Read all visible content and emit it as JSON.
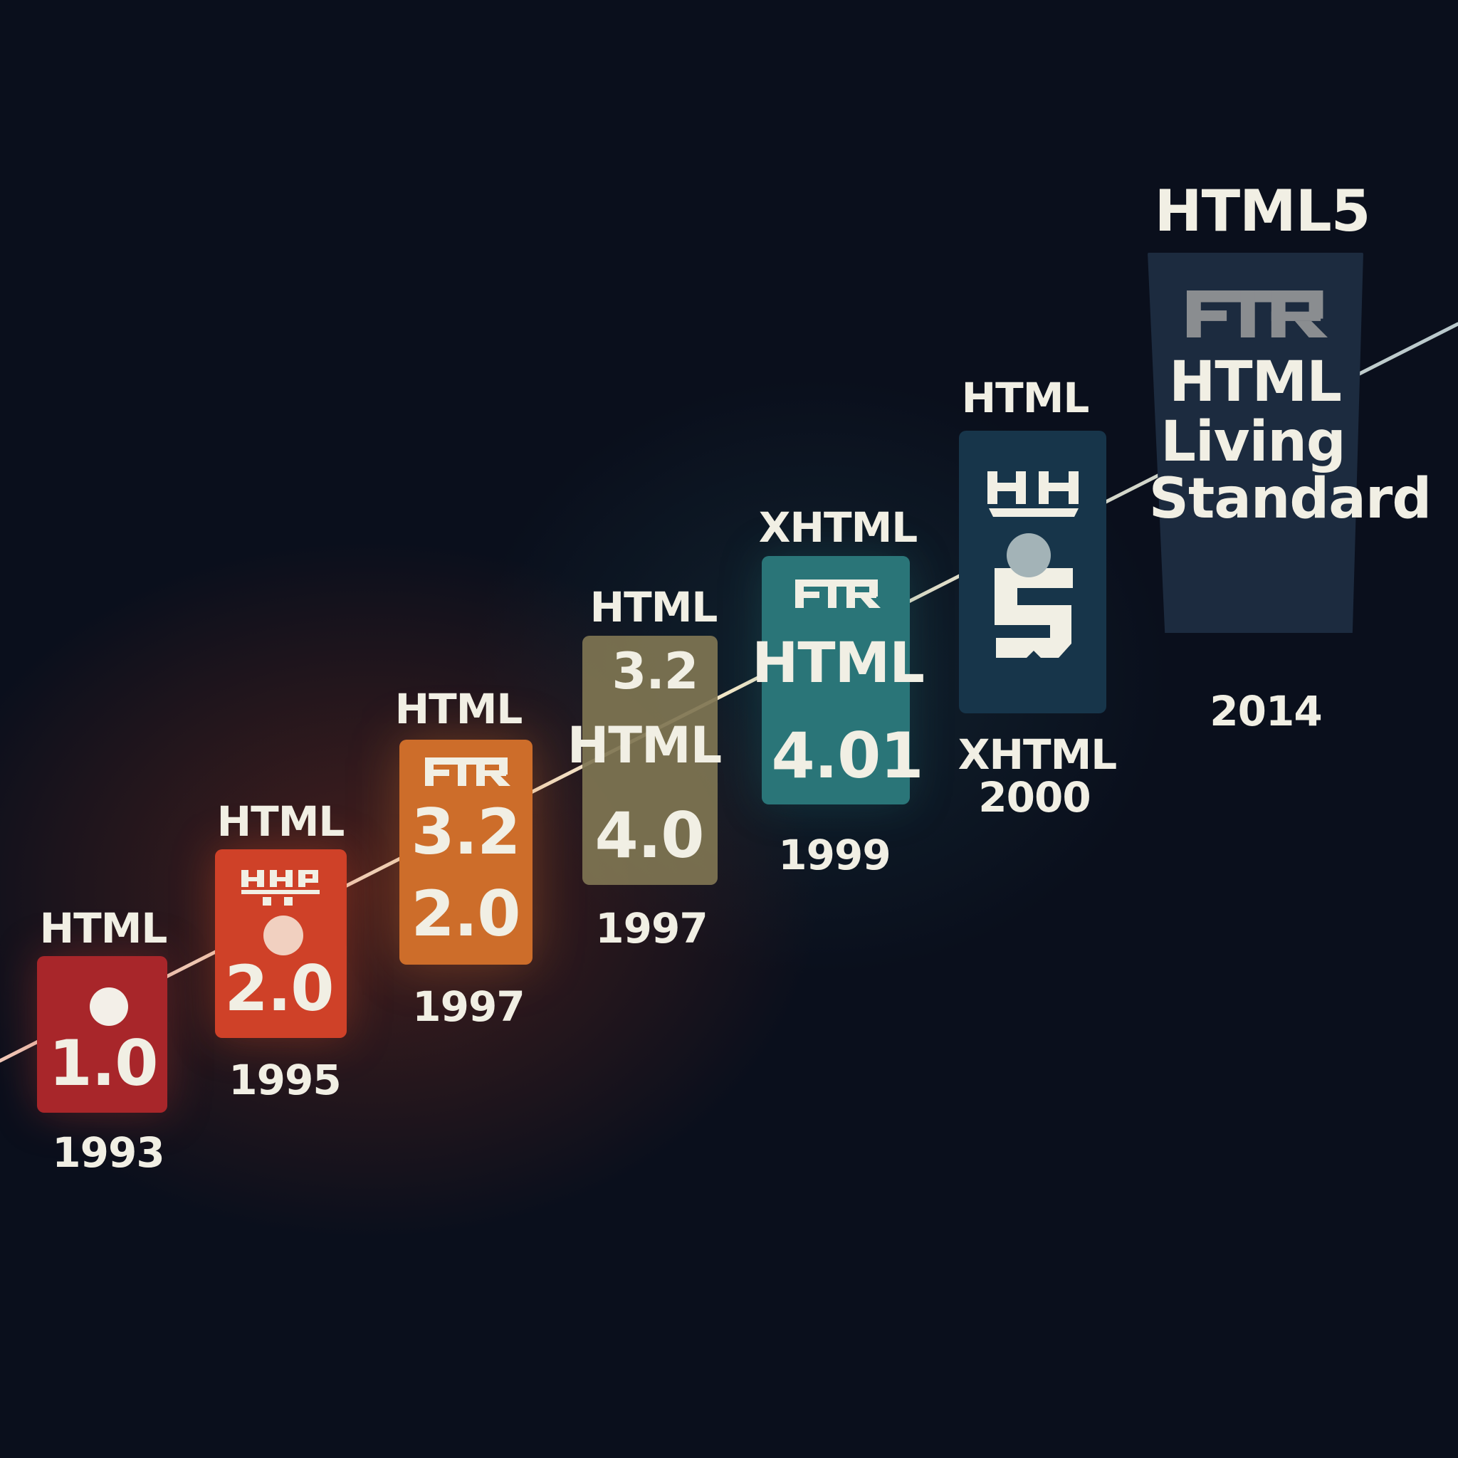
{
  "milestones": [
    {
      "label": "HTML",
      "version": "1.0",
      "year": "1993",
      "color": "#a8262a"
    },
    {
      "label": "HTML",
      "version": "2.0",
      "year": "1995",
      "color": "#cf4128"
    },
    {
      "label": "HTML",
      "version_lines": [
        "3.2",
        "2.0"
      ],
      "year": "1997",
      "color": "#cd6d2a"
    },
    {
      "label": "HTML",
      "version_lines": [
        "3.2",
        "HTML",
        "4.0"
      ],
      "year": "1997",
      "color": "#7f7552"
    },
    {
      "label": "XHTML",
      "version_lines": [
        "HTML",
        "4.01"
      ],
      "year": "1999",
      "color": "#2a7578"
    },
    {
      "label": "HTML",
      "version": "5",
      "year_lines": [
        "XHTML",
        "2000"
      ],
      "color": "#17354a"
    },
    {
      "label": "HTML5",
      "version_lines": [
        "HTML",
        "Living",
        "Standard"
      ],
      "year": "2014",
      "color": "#1c2b3f"
    }
  ],
  "colors": {
    "background": "#0a0f1c",
    "text": "#f1efe4",
    "line": "#e8ddd0",
    "logo": "#8a8d90"
  },
  "icons": [
    "ftr-logo",
    "html-logo-mark",
    "html5-shield-logo"
  ]
}
